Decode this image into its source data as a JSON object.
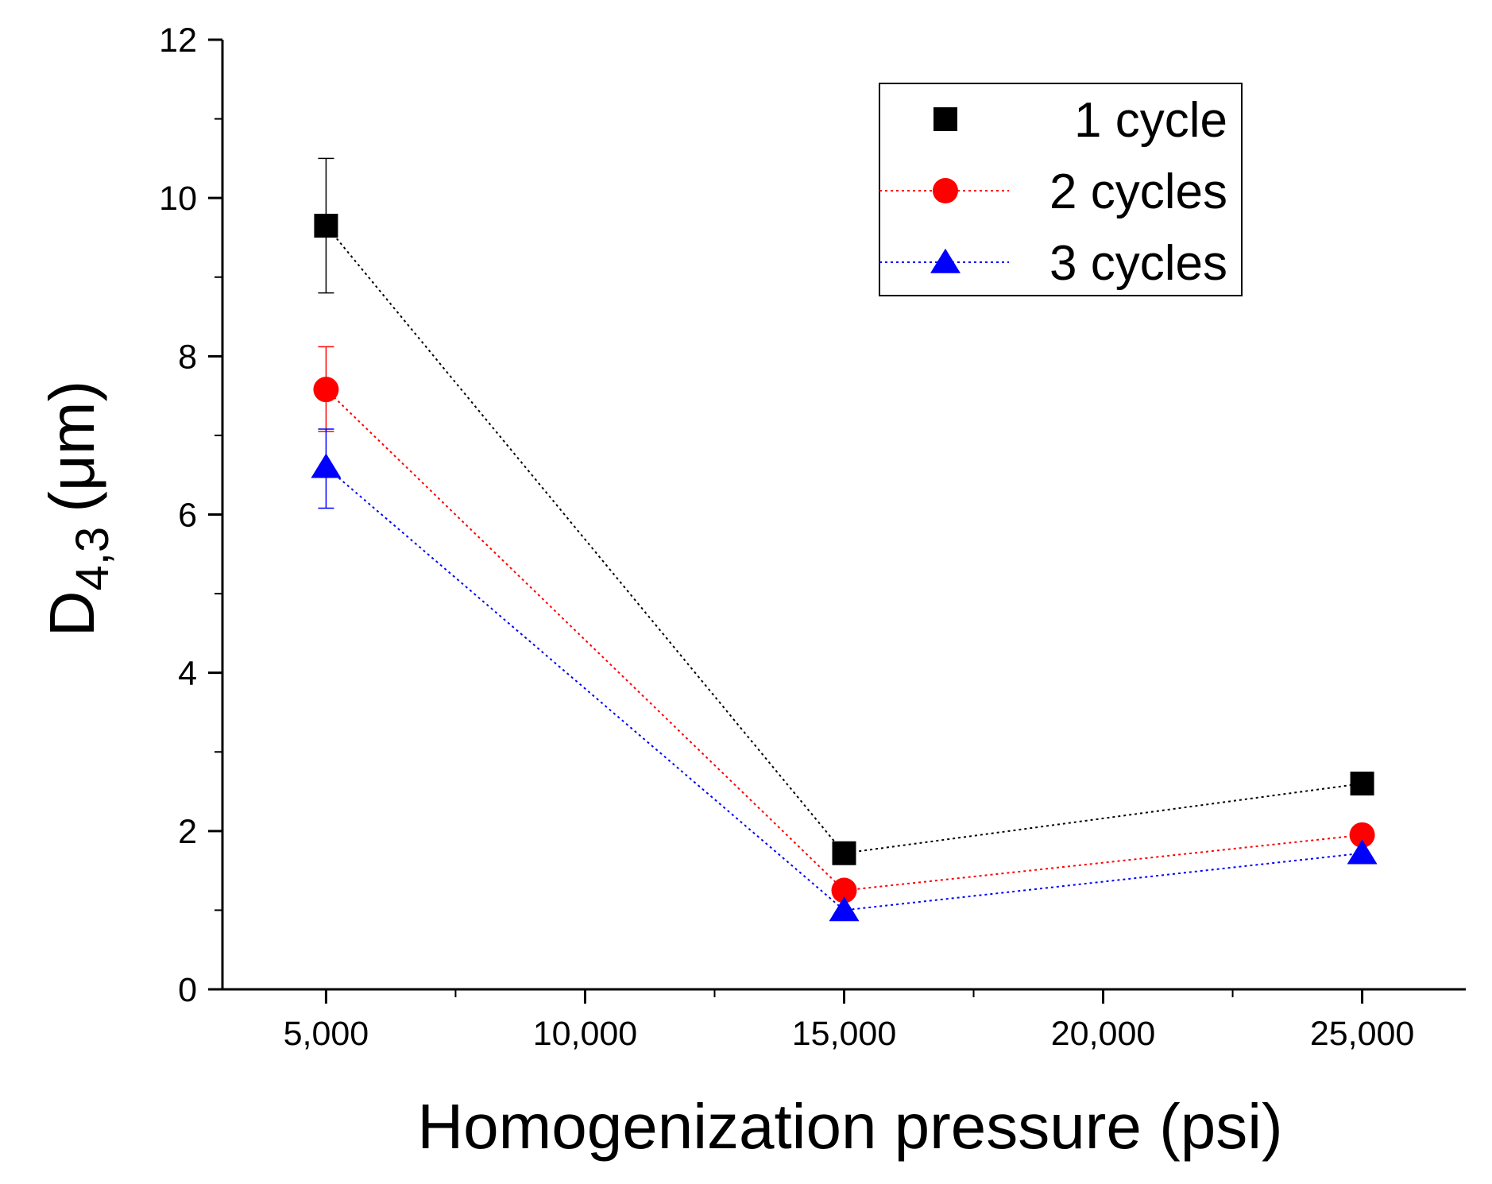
{
  "chart_data": {
    "type": "line",
    "xlabel": "Homogenization pressure (psi)",
    "ylabel": {
      "main": "D",
      "subscript": "4,3",
      "unit": "(μm)"
    },
    "xlim": [
      3000,
      27000
    ],
    "ylim": [
      0,
      12
    ],
    "x_ticks": [
      5000,
      10000,
      15000,
      20000,
      25000
    ],
    "x_tick_labels": [
      "5,000",
      "10,000",
      "15,000",
      "20,000",
      "25,000"
    ],
    "y_ticks": [
      0,
      2,
      4,
      6,
      8,
      10,
      12
    ],
    "y_tick_labels": [
      "0",
      "2",
      "4",
      "6",
      "8",
      "10",
      "12"
    ],
    "grid": false,
    "legend_position": "top-right",
    "x": [
      5000,
      15000,
      25000
    ],
    "series": [
      {
        "name": "1 cycle",
        "marker": "square",
        "color": "#000000",
        "values": [
          9.65,
          1.72,
          2.6
        ],
        "err_upper": [
          10.5,
          null,
          null
        ],
        "err_lower": [
          8.8,
          null,
          null
        ]
      },
      {
        "name": "2 cycles",
        "marker": "circle",
        "color": "#ff0000",
        "values": [
          7.58,
          1.25,
          1.95
        ],
        "err_upper": [
          8.12,
          null,
          null
        ],
        "err_lower": [
          7.05,
          null,
          null
        ]
      },
      {
        "name": "3 cycles",
        "marker": "triangle",
        "color": "#0000ff",
        "values": [
          6.6,
          1.0,
          1.72
        ],
        "err_upper": [
          7.08,
          null,
          null
        ],
        "err_lower": [
          6.08,
          null,
          null
        ]
      }
    ]
  }
}
